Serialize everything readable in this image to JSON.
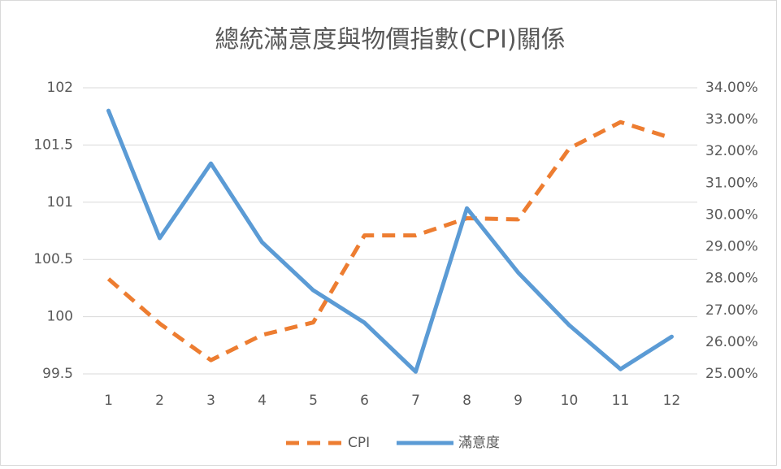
{
  "chart_data": {
    "type": "line",
    "title": "總統滿意度與物價指數(CPI)關係",
    "categories": [
      "1",
      "2",
      "3",
      "4",
      "5",
      "6",
      "7",
      "8",
      "9",
      "10",
      "11",
      "12"
    ],
    "series": [
      {
        "name": "CPI",
        "color": "#ed7d31",
        "dash": true,
        "axis": "y",
        "values": [
          100.33,
          99.94,
          99.62,
          99.84,
          99.95,
          100.71,
          100.71,
          100.86,
          100.85,
          101.47,
          101.7,
          101.56
        ]
      },
      {
        "name": "滿意度",
        "color": "#5b9bd5",
        "dash": false,
        "axis": "y2",
        "values": [
          33.28,
          29.27,
          31.62,
          29.14,
          27.63,
          26.61,
          25.07,
          30.21,
          28.19,
          26.53,
          25.15,
          26.17
        ]
      }
    ],
    "ylim": [
      99.5,
      102
    ],
    "yticks": [
      99.5,
      100,
      100.5,
      101,
      101.5,
      102
    ],
    "y2lim": [
      25,
      34
    ],
    "y2ticks": [
      {
        "value": 25,
        "label": "25.00%"
      },
      {
        "value": 26,
        "label": "26.00%"
      },
      {
        "value": 27,
        "label": "27.00%"
      },
      {
        "value": 28,
        "label": "28.00%"
      },
      {
        "value": 29,
        "label": "29.00%"
      },
      {
        "value": 30,
        "label": "30.00%"
      },
      {
        "value": 31,
        "label": "31.00%"
      },
      {
        "value": 32,
        "label": "32.00%"
      },
      {
        "value": 33,
        "label": "33.00%"
      },
      {
        "value": 34,
        "label": "34.00%"
      }
    ],
    "grid": true,
    "legend": "bottom"
  }
}
